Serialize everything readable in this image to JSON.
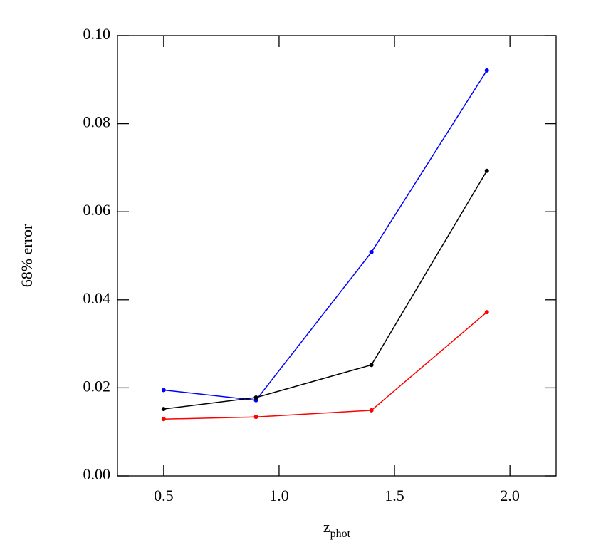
{
  "chart_data": {
    "type": "line",
    "x_label": "z",
    "x_label_subscript": "phot",
    "y_label": "68% error",
    "x": [
      0.5,
      0.9,
      1.4,
      1.9
    ],
    "series": [
      {
        "color": "#0000ff",
        "values": [
          0.0195,
          0.0172,
          0.0508,
          0.0921
        ]
      },
      {
        "color": "#000000",
        "values": [
          0.0152,
          0.0178,
          0.0252,
          0.0693
        ]
      },
      {
        "color": "#ff0000",
        "values": [
          0.0129,
          0.0134,
          0.0149,
          0.0372
        ]
      }
    ],
    "xlim": [
      0.3,
      2.2
    ],
    "ylim": [
      0,
      0.1
    ],
    "xticks": [
      0.5,
      {
        "value": 1,
        "label": "1.0"
      },
      1.5,
      {
        "value": 2,
        "label": "2.0"
      }
    ],
    "yticks": [
      {
        "value": 0,
        "label": "0.00"
      },
      {
        "value": 0.02,
        "label": "0.02"
      },
      {
        "value": 0.04,
        "label": "0.04"
      },
      {
        "value": 0.06,
        "label": "0.06"
      },
      {
        "value": 0.08,
        "label": "0.08"
      },
      {
        "value": 0.1,
        "label": "0.10"
      }
    ]
  }
}
